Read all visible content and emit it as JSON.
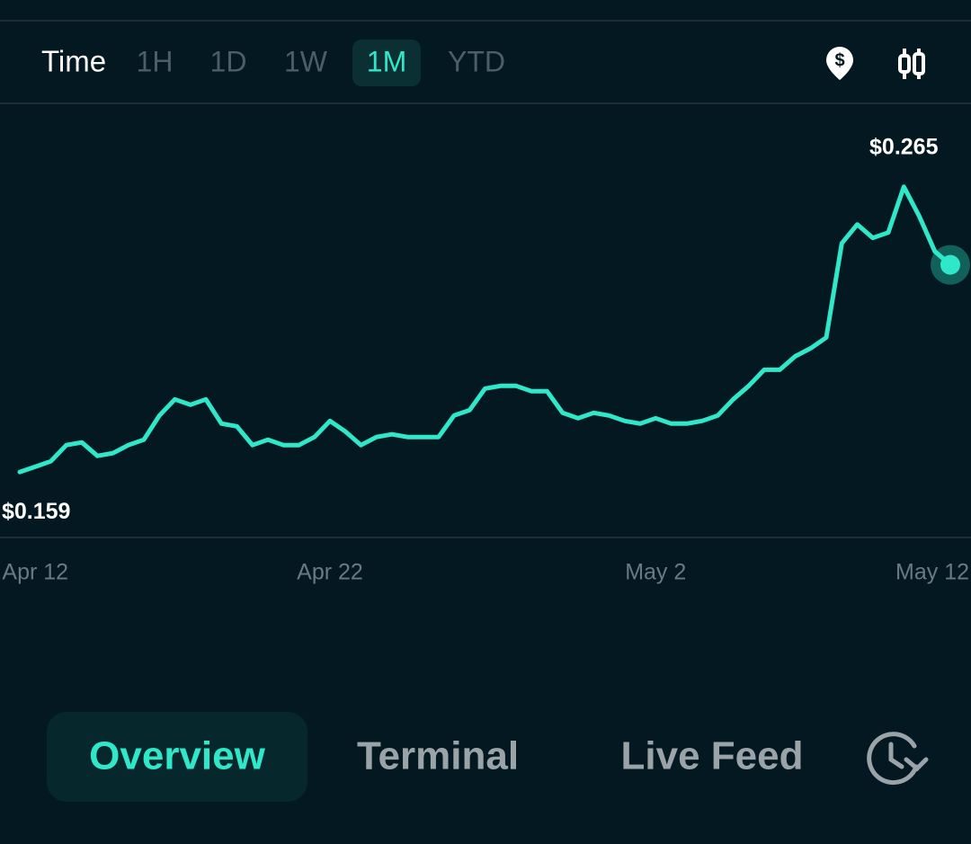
{
  "time_bar": {
    "label": "Time",
    "options": [
      "1H",
      "1D",
      "1W",
      "1M",
      "YTD"
    ],
    "selected": 3
  },
  "chart_data": {
    "type": "line",
    "color": "#2ee8c9",
    "categories": [
      null,
      "Apr 12",
      null,
      null,
      null,
      null,
      null,
      null,
      null,
      null,
      null,
      null,
      null,
      null,
      null,
      null,
      null,
      null,
      null,
      null,
      "Apr 22",
      null,
      null,
      null,
      null,
      null,
      null,
      null,
      null,
      null,
      null,
      null,
      null,
      null,
      null,
      null,
      null,
      null,
      null,
      null,
      null,
      "May 2",
      null,
      null,
      null,
      null,
      null,
      null,
      null,
      null,
      null,
      null,
      null,
      null,
      null,
      null,
      null,
      null,
      null,
      "May 12",
      null
    ],
    "values": [
      0.159,
      0.161,
      0.163,
      0.169,
      0.17,
      0.165,
      0.166,
      0.169,
      0.171,
      0.18,
      0.186,
      0.184,
      0.186,
      0.177,
      0.176,
      0.169,
      0.171,
      0.169,
      0.169,
      0.172,
      0.178,
      0.174,
      0.169,
      0.172,
      0.173,
      0.172,
      0.172,
      0.172,
      0.18,
      0.182,
      0.19,
      0.191,
      0.191,
      0.189,
      0.189,
      0.181,
      0.179,
      0.181,
      0.18,
      0.178,
      0.177,
      0.179,
      0.177,
      0.177,
      0.178,
      0.18,
      0.186,
      0.191,
      0.197,
      0.197,
      0.202,
      0.205,
      0.209,
      0.244,
      0.251,
      0.246,
      0.248,
      0.265,
      0.254,
      0.241,
      0.236
    ],
    "ylim": [
      0.135,
      0.296
    ],
    "annotations": [
      {
        "value": 0.265,
        "label": "$0.265"
      },
      {
        "value": 0.159,
        "label": "$0.159"
      }
    ]
  },
  "tabs": {
    "items": [
      "Overview",
      "Terminal",
      "Live Feed"
    ],
    "selected": 0
  }
}
